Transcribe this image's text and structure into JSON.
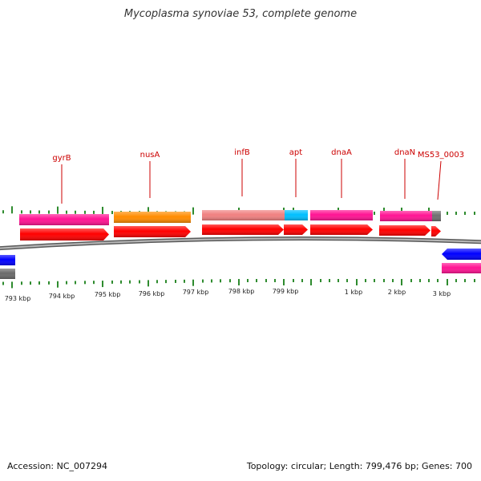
{
  "title": "Mycoplasma synoviae 53, complete genome",
  "footer": {
    "accession": "Accession: NC_007294",
    "summary": "Topology: circular; Length: 799,476 bp; Genes: 700"
  },
  "colors": {
    "backbone": "#8c8c8c",
    "tick": "#2e8b2e",
    "label": "#cc0000",
    "cds": "#ff0000",
    "gyrB": "#ff1493",
    "nusA": "#ff8c00",
    "infB": "#f08080",
    "apt": "#00bfff",
    "dnaA": "#ff1493",
    "dnaN": "#ff1493",
    "MS53_0003": "#707070",
    "left_gene_blue": "#0000ff",
    "right_gene_blue": "#0000ff"
  },
  "gene_labels": [
    "gyrB",
    "nusA",
    "infB",
    "apt",
    "dnaA",
    "dnaN",
    "MS53_0003"
  ],
  "kbp_labels": [
    "793 kbp",
    "794 kbp",
    "795 kbp",
    "796 kbp",
    "797 kbp",
    "798 kbp",
    "799 kbp",
    "1 kbp",
    "2 kbp",
    "3 kbp"
  ]
}
